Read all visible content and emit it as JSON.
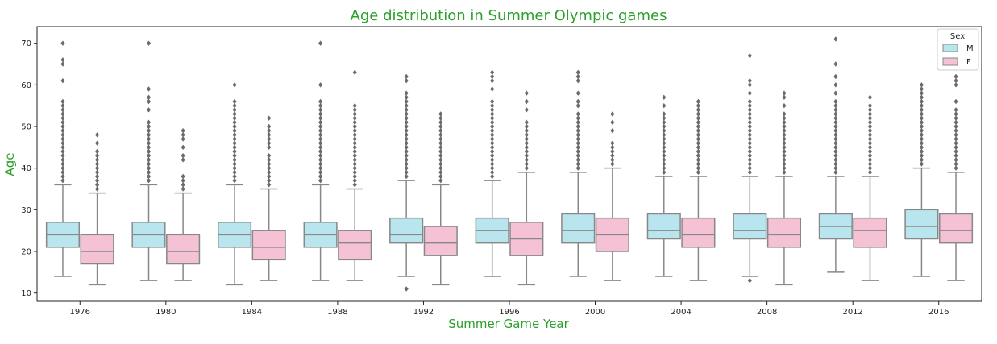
{
  "chart_data": {
    "type": "box",
    "title": "Age distribution in Summer Olympic games",
    "xlabel": "Summer Game Year",
    "ylabel": "Age",
    "ylim": [
      8,
      74
    ],
    "yticks": [
      10,
      20,
      30,
      40,
      50,
      60,
      70
    ],
    "grid": false,
    "legend": {
      "title": "Sex",
      "position": "top-right"
    },
    "colors": {
      "title": "#2ca02c",
      "axis_label": "#2ca02c",
      "box_line": "#888888",
      "flier": "#6b6b6b"
    },
    "categories": [
      "1976",
      "1980",
      "1984",
      "1988",
      "1992",
      "1996",
      "2000",
      "2004",
      "2008",
      "2012",
      "2016"
    ],
    "series": [
      {
        "name": "M",
        "color": "#b9e6ee",
        "boxes": [
          {
            "whislo": 14,
            "q1": 21,
            "med": 24,
            "q3": 27,
            "whishi": 36,
            "fliers": [
              37,
              38,
              39,
              40,
              41,
              42,
              43,
              44,
              45,
              46,
              47,
              48,
              49,
              50,
              51,
              52,
              53,
              54,
              55,
              56,
              61,
              65,
              66,
              70
            ]
          },
          {
            "whislo": 13,
            "q1": 21,
            "med": 24,
            "q3": 27,
            "whishi": 36,
            "fliers": [
              37,
              38,
              39,
              40,
              41,
              42,
              43,
              44,
              45,
              46,
              47,
              48,
              49,
              50,
              51,
              54,
              56,
              57,
              59,
              70
            ]
          },
          {
            "whislo": 12,
            "q1": 21,
            "med": 24,
            "q3": 27,
            "whishi": 36,
            "fliers": [
              37,
              38,
              39,
              40,
              41,
              42,
              43,
              44,
              45,
              46,
              47,
              48,
              49,
              50,
              51,
              52,
              53,
              54,
              55,
              56,
              60
            ]
          },
          {
            "whislo": 13,
            "q1": 21,
            "med": 24,
            "q3": 27,
            "whishi": 36,
            "fliers": [
              37,
              38,
              39,
              40,
              41,
              42,
              43,
              44,
              45,
              46,
              47,
              48,
              49,
              50,
              51,
              52,
              53,
              54,
              55,
              56,
              60,
              70
            ]
          },
          {
            "whislo": 14,
            "q1": 22,
            "med": 24,
            "q3": 28,
            "whishi": 37,
            "fliers": [
              11,
              38,
              39,
              40,
              41,
              42,
              43,
              44,
              45,
              46,
              47,
              48,
              49,
              50,
              51,
              52,
              53,
              54,
              55,
              56,
              57,
              58,
              61,
              62
            ]
          },
          {
            "whislo": 14,
            "q1": 22,
            "med": 25,
            "q3": 28,
            "whishi": 37,
            "fliers": [
              38,
              39,
              40,
              41,
              42,
              43,
              44,
              45,
              46,
              47,
              48,
              49,
              50,
              51,
              52,
              53,
              54,
              55,
              56,
              59,
              61,
              62,
              63
            ]
          },
          {
            "whislo": 14,
            "q1": 22,
            "med": 25,
            "q3": 29,
            "whishi": 39,
            "fliers": [
              40,
              41,
              42,
              43,
              44,
              45,
              46,
              47,
              48,
              49,
              50,
              51,
              52,
              53,
              55,
              56,
              58,
              61,
              62,
              63
            ]
          },
          {
            "whislo": 14,
            "q1": 23,
            "med": 25,
            "q3": 29,
            "whishi": 38,
            "fliers": [
              39,
              40,
              41,
              42,
              43,
              44,
              45,
              46,
              47,
              48,
              49,
              50,
              51,
              52,
              53,
              55,
              57
            ]
          },
          {
            "whislo": 14,
            "q1": 23,
            "med": 25,
            "q3": 29,
            "whishi": 38,
            "fliers": [
              13,
              39,
              40,
              41,
              42,
              43,
              44,
              45,
              46,
              47,
              48,
              49,
              50,
              51,
              52,
              53,
              54,
              55,
              56,
              58,
              60,
              61,
              67
            ]
          },
          {
            "whislo": 15,
            "q1": 23,
            "med": 26,
            "q3": 29,
            "whishi": 38,
            "fliers": [
              39,
              40,
              41,
              42,
              43,
              44,
              45,
              46,
              47,
              48,
              49,
              50,
              51,
              52,
              53,
              54,
              55,
              56,
              58,
              60,
              62,
              65,
              71
            ]
          },
          {
            "whislo": 14,
            "q1": 23,
            "med": 26,
            "q3": 30,
            "whishi": 40,
            "fliers": [
              41,
              42,
              43,
              44,
              45,
              46,
              47,
              48,
              49,
              50,
              51,
              52,
              53,
              54,
              55,
              56,
              57,
              58,
              59,
              60
            ]
          }
        ]
      },
      {
        "name": "F",
        "color": "#f4c2d4",
        "boxes": [
          {
            "whislo": 12,
            "q1": 17,
            "med": 20,
            "q3": 24,
            "whishi": 34,
            "fliers": [
              35,
              36,
              37,
              38,
              39,
              40,
              41,
              42,
              43,
              44,
              46,
              48
            ]
          },
          {
            "whislo": 13,
            "q1": 17,
            "med": 20,
            "q3": 24,
            "whishi": 34,
            "fliers": [
              35,
              36,
              37,
              38,
              42,
              43,
              45,
              47,
              48,
              49
            ]
          },
          {
            "whislo": 13,
            "q1": 18,
            "med": 21,
            "q3": 25,
            "whishi": 35,
            "fliers": [
              36,
              37,
              38,
              39,
              40,
              41,
              42,
              43,
              45,
              46,
              47,
              48,
              49,
              50,
              52
            ]
          },
          {
            "whislo": 13,
            "q1": 18,
            "med": 22,
            "q3": 25,
            "whishi": 35,
            "fliers": [
              36,
              37,
              38,
              39,
              40,
              41,
              42,
              43,
              44,
              45,
              46,
              47,
              48,
              49,
              50,
              51,
              52,
              53,
              54,
              55,
              63
            ]
          },
          {
            "whislo": 12,
            "q1": 19,
            "med": 22,
            "q3": 26,
            "whishi": 36,
            "fliers": [
              37,
              38,
              39,
              40,
              41,
              42,
              43,
              44,
              45,
              46,
              47,
              48,
              49,
              50,
              51,
              52,
              53
            ]
          },
          {
            "whislo": 12,
            "q1": 19,
            "med": 23,
            "q3": 27,
            "whishi": 39,
            "fliers": [
              40,
              41,
              42,
              43,
              44,
              45,
              46,
              47,
              48,
              49,
              50,
              51,
              54,
              56,
              58
            ]
          },
          {
            "whislo": 13,
            "q1": 20,
            "med": 24,
            "q3": 28,
            "whishi": 40,
            "fliers": [
              41,
              42,
              43,
              44,
              45,
              46,
              49,
              51,
              53
            ]
          },
          {
            "whislo": 13,
            "q1": 21,
            "med": 24,
            "q3": 28,
            "whishi": 38,
            "fliers": [
              39,
              40,
              41,
              42,
              43,
              44,
              45,
              46,
              47,
              48,
              49,
              50,
              51,
              52,
              53,
              54,
              55,
              56
            ]
          },
          {
            "whislo": 12,
            "q1": 21,
            "med": 24,
            "q3": 28,
            "whishi": 38,
            "fliers": [
              39,
              40,
              41,
              42,
              43,
              44,
              45,
              46,
              47,
              48,
              49,
              50,
              51,
              52,
              53,
              55,
              57,
              58
            ]
          },
          {
            "whislo": 13,
            "q1": 21,
            "med": 25,
            "q3": 28,
            "whishi": 38,
            "fliers": [
              39,
              40,
              41,
              42,
              43,
              44,
              45,
              46,
              47,
              48,
              49,
              50,
              51,
              52,
              53,
              54,
              55,
              57
            ]
          },
          {
            "whislo": 13,
            "q1": 22,
            "med": 25,
            "q3": 29,
            "whishi": 39,
            "fliers": [
              40,
              41,
              42,
              43,
              44,
              45,
              46,
              47,
              48,
              49,
              50,
              51,
              52,
              53,
              54,
              56,
              60,
              61,
              62
            ]
          }
        ]
      }
    ]
  }
}
